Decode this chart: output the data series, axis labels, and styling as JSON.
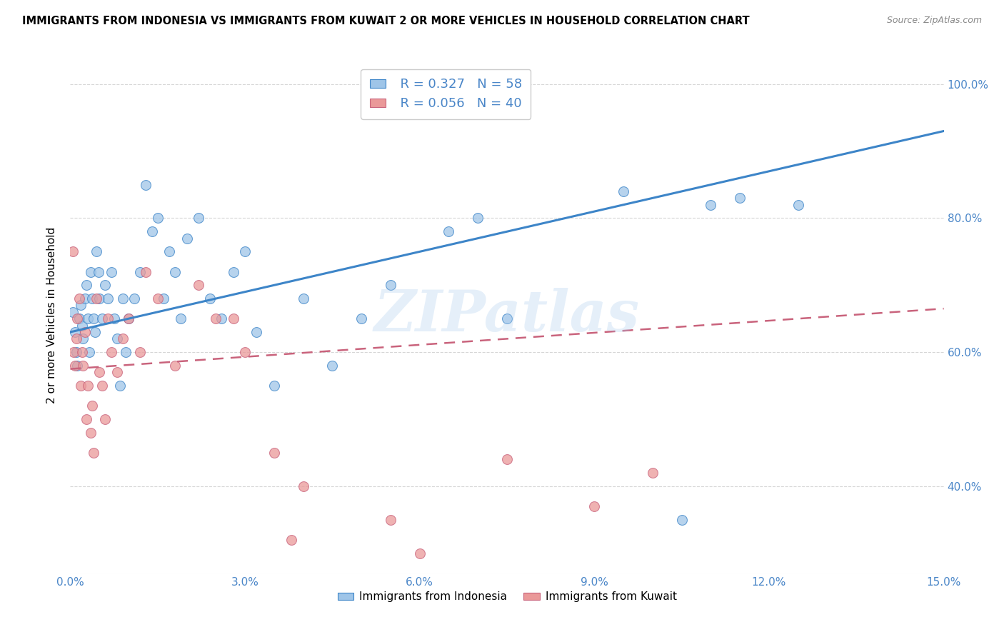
{
  "title": "IMMIGRANTS FROM INDONESIA VS IMMIGRANTS FROM KUWAIT 2 OR MORE VEHICLES IN HOUSEHOLD CORRELATION CHART",
  "source": "Source: ZipAtlas.com",
  "xlabel_vals": [
    0.0,
    3.0,
    6.0,
    9.0,
    12.0,
    15.0
  ],
  "ylabel_vals": [
    40.0,
    60.0,
    80.0,
    100.0
  ],
  "xmin": 0.0,
  "xmax": 15.0,
  "ymin": 27.0,
  "ymax": 104.0,
  "R_indonesia": 0.327,
  "N_indonesia": 58,
  "R_kuwait": 0.056,
  "N_kuwait": 40,
  "color_indonesia": "#9fc5e8",
  "color_kuwait": "#ea9999",
  "color_line_indonesia": "#3d85c8",
  "color_line_kuwait": "#c9637c",
  "ylabel": "2 or more Vehicles in Household",
  "watermark": "ZIPatlas",
  "legend_label_indonesia": "Immigrants from Indonesia",
  "legend_label_kuwait": "Immigrants from Kuwait",
  "indo_line_x0": 0.0,
  "indo_line_y0": 63.0,
  "indo_line_x1": 15.0,
  "indo_line_y1": 93.0,
  "kuw_line_x0": 0.0,
  "kuw_line_y0": 57.5,
  "kuw_line_x1": 15.0,
  "kuw_line_y1": 66.5,
  "indo_x": [
    0.05,
    0.08,
    0.1,
    0.12,
    0.15,
    0.18,
    0.2,
    0.22,
    0.25,
    0.28,
    0.3,
    0.32,
    0.35,
    0.38,
    0.4,
    0.42,
    0.45,
    0.48,
    0.5,
    0.55,
    0.6,
    0.65,
    0.7,
    0.75,
    0.8,
    0.85,
    0.9,
    0.95,
    1.0,
    1.1,
    1.2,
    1.3,
    1.4,
    1.5,
    1.6,
    1.7,
    1.8,
    1.9,
    2.0,
    2.2,
    2.4,
    2.6,
    2.8,
    3.0,
    3.5,
    4.0,
    5.0,
    5.5,
    6.5,
    7.0,
    7.5,
    9.5,
    10.5,
    11.0,
    11.5,
    12.5,
    3.2,
    4.5
  ],
  "indo_y": [
    66,
    63,
    60,
    58,
    65,
    67,
    64,
    62,
    68,
    70,
    65,
    60,
    72,
    68,
    65,
    63,
    75,
    72,
    68,
    65,
    70,
    68,
    72,
    65,
    62,
    55,
    68,
    60,
    65,
    68,
    72,
    85,
    78,
    80,
    68,
    75,
    72,
    65,
    77,
    80,
    68,
    65,
    72,
    75,
    55,
    68,
    65,
    70,
    78,
    80,
    65,
    84,
    35,
    82,
    83,
    82,
    63,
    58
  ],
  "kuw_x": [
    0.04,
    0.06,
    0.08,
    0.1,
    0.12,
    0.15,
    0.18,
    0.2,
    0.22,
    0.25,
    0.28,
    0.3,
    0.35,
    0.38,
    0.4,
    0.45,
    0.5,
    0.55,
    0.6,
    0.65,
    0.7,
    0.8,
    0.9,
    1.0,
    1.2,
    1.5,
    1.8,
    2.2,
    2.5,
    3.0,
    3.5,
    4.0,
    5.5,
    6.0,
    7.5,
    9.0,
    10.0,
    1.3,
    2.8,
    3.8
  ],
  "kuw_y": [
    75,
    60,
    58,
    62,
    65,
    68,
    55,
    60,
    58,
    63,
    50,
    55,
    48,
    52,
    45,
    68,
    57,
    55,
    50,
    65,
    60,
    57,
    62,
    65,
    60,
    68,
    58,
    70,
    65,
    60,
    45,
    40,
    35,
    30,
    44,
    37,
    42,
    72,
    65,
    32
  ]
}
